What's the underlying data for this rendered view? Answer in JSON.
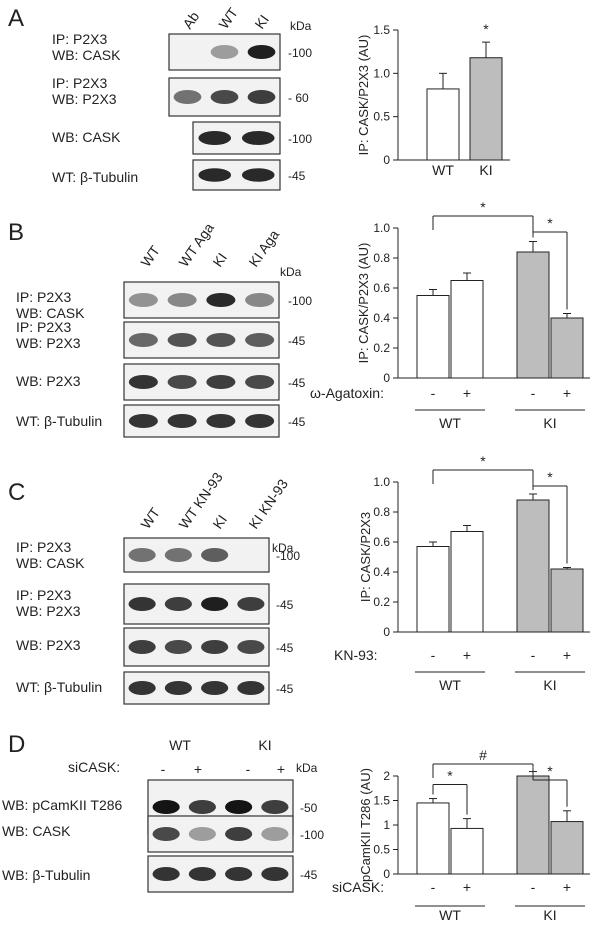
{
  "figure": {
    "panels": [
      {
        "id": "A",
        "lanes": [
          "Ab",
          "WT",
          "KI"
        ],
        "kda_label": "kDa",
        "blots": [
          {
            "line1": "IP: P2X3",
            "line2": "WB: CASK",
            "mw": "-100"
          },
          {
            "line1": "IP: P2X3",
            "line2": "WB: P2X3",
            "mw": "- 60"
          },
          {
            "line1": "WB: CASK",
            "line2": "",
            "mw": "-100"
          },
          {
            "line1": "WT: β-Tubulin",
            "line2": "",
            "mw": "-45"
          }
        ]
      },
      {
        "id": "B",
        "lanes": [
          "WT",
          "WT Aga",
          "KI",
          "KI Aga"
        ],
        "kda_label": "kDa",
        "blots": [
          {
            "line1": "IP: P2X3",
            "line2": "WB: CASK",
            "mw": "-100"
          },
          {
            "line1": "IP: P2X3",
            "line2": "WB: P2X3",
            "mw": "-45"
          },
          {
            "line1": "WB: P2X3",
            "line2": "",
            "mw": "-45"
          },
          {
            "line1": "WT: β-Tubulin",
            "line2": "",
            "mw": "-45"
          }
        ]
      },
      {
        "id": "C",
        "lanes": [
          "WT",
          "WT KN-93",
          "KI",
          "KI KN-93"
        ],
        "kda_label": "kDa",
        "blots": [
          {
            "line1": "IP: P2X3",
            "line2": "WB: CASK",
            "mw": "-100"
          },
          {
            "line1": "IP: P2X3",
            "line2": "WB: P2X3",
            "mw": "-45"
          },
          {
            "line1": "WB: P2X3",
            "line2": "",
            "mw": "-45"
          },
          {
            "line1": "WT: β-Tubulin",
            "line2": "",
            "mw": "-45"
          }
        ]
      },
      {
        "id": "D",
        "groups": [
          "WT",
          "KI"
        ],
        "treatment_label": "siCASK:",
        "treatment_signs": [
          "-",
          "+",
          "-",
          "+"
        ],
        "kda_label": "kDa",
        "blots": [
          {
            "line1": "WB: pCamKII T286",
            "line2": "",
            "mw": "-50"
          },
          {
            "line1": "WB: CASK",
            "line2": "",
            "mw": "-100"
          },
          {
            "line1": "WB: β-Tubulin",
            "line2": "",
            "mw": "-45"
          }
        ]
      }
    ]
  },
  "chart_data": [
    {
      "type": "bar",
      "panel": "A",
      "ylabel": "IP: CASK/P2X3 (AU)",
      "ylim": [
        0,
        1.5
      ],
      "yticks": [
        "0",
        "0.5",
        "1.0",
        "1.5"
      ],
      "categories": [
        "WT",
        "KI"
      ],
      "values": [
        0.82,
        1.18
      ],
      "errors": [
        0.18,
        0.18
      ],
      "fills": [
        "#ffffff",
        "#bdbdbd"
      ],
      "significance": [
        {
          "text": "*",
          "over": 1
        }
      ]
    },
    {
      "type": "bar",
      "panel": "B",
      "ylabel": "IP: CASK/P2X3 (AU)",
      "ylim": [
        0,
        1.0
      ],
      "yticks": [
        "0",
        "0.2",
        "0.4",
        "0.6",
        "0.8",
        "1.0"
      ],
      "categories": [
        "-",
        "+",
        "-",
        "+"
      ],
      "values": [
        0.55,
        0.65,
        0.84,
        0.4
      ],
      "errors": [
        0.04,
        0.05,
        0.07,
        0.03
      ],
      "fills": [
        "#ffffff",
        "#ffffff",
        "#bdbdbd",
        "#bdbdbd"
      ],
      "treatment_label": "ω-Agatoxin:",
      "groups": [
        "WT",
        "KI"
      ],
      "comparisons": [
        {
          "from": 0,
          "to": 2,
          "text": "*"
        },
        {
          "from": 2,
          "to": 3,
          "text": "*"
        }
      ]
    },
    {
      "type": "bar",
      "panel": "C",
      "ylabel": "IP: CASK/P2X3",
      "ylim": [
        0,
        1.0
      ],
      "yticks": [
        "0",
        "0.2",
        "0.4",
        "0.6",
        "0.8",
        "1.0"
      ],
      "categories": [
        "-",
        "+",
        "-",
        "+"
      ],
      "values": [
        0.57,
        0.67,
        0.88,
        0.42
      ],
      "errors": [
        0.03,
        0.04,
        0.04,
        0.01
      ],
      "fills": [
        "#ffffff",
        "#ffffff",
        "#bdbdbd",
        "#bdbdbd"
      ],
      "treatment_label": "KN-93:",
      "groups": [
        "WT",
        "KI"
      ],
      "comparisons": [
        {
          "from": 0,
          "to": 2,
          "text": "*"
        },
        {
          "from": 2,
          "to": 3,
          "text": "*"
        }
      ]
    },
    {
      "type": "bar",
      "panel": "D",
      "ylabel": "pCamKII T286 (AU)",
      "ylim": [
        0,
        2.0
      ],
      "yticks": [
        "0",
        "0.5",
        "1",
        "1.5",
        "2"
      ],
      "categories": [
        "-",
        "+",
        "-",
        "+"
      ],
      "values": [
        1.45,
        0.93,
        2.0,
        1.07
      ],
      "errors": [
        0.09,
        0.2,
        0.09,
        0.22
      ],
      "fills": [
        "#ffffff",
        "#ffffff",
        "#bdbdbd",
        "#bdbdbd"
      ],
      "treatment_label": "siCASK:",
      "groups": [
        "WT",
        "KI"
      ],
      "comparisons": [
        {
          "from": 0,
          "to": 2,
          "text": "#"
        },
        {
          "from": 0,
          "to": 1,
          "text": "*"
        },
        {
          "from": 2,
          "to": 3,
          "text": "*"
        }
      ]
    }
  ]
}
